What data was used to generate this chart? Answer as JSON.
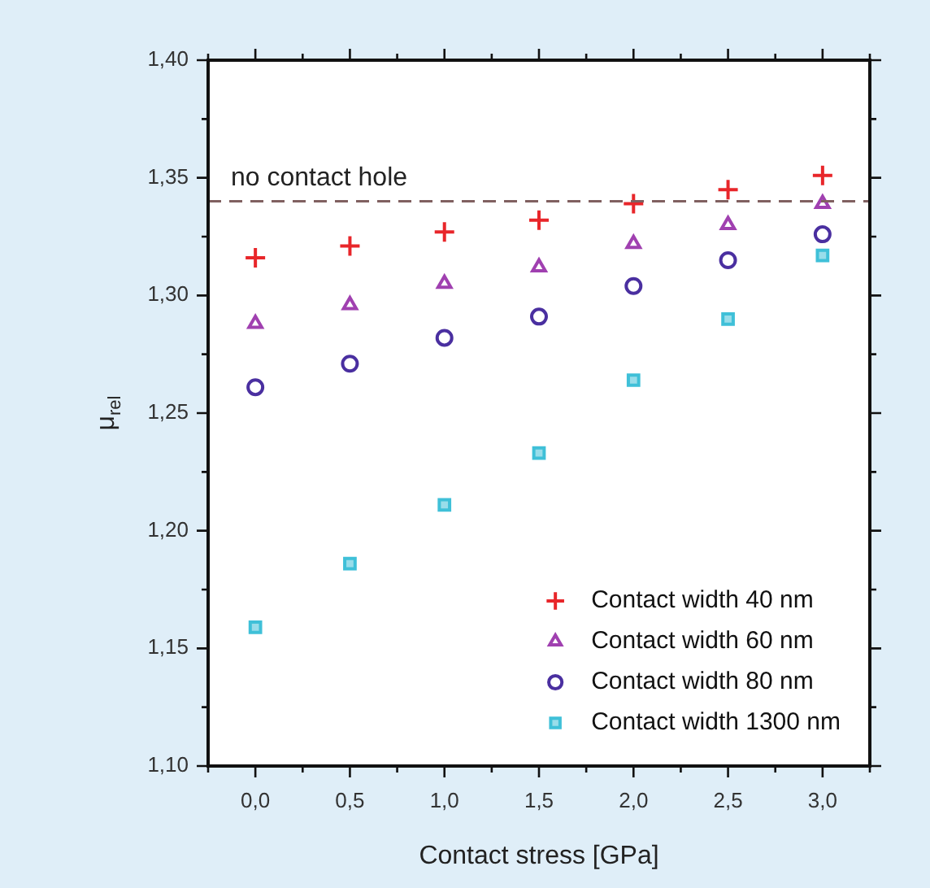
{
  "chart_data": {
    "type": "scatter",
    "xlabel": "Contact stress [GPa]",
    "ylabel": "μ$_{rel}$",
    "x": [
      0,
      0.5,
      1,
      1.5,
      2,
      2.5,
      3
    ],
    "xlim": [
      -0.25,
      3.25
    ],
    "xticks": [
      {
        "value": -0.25,
        "label": null
      },
      {
        "value": 0,
        "label": "0,0"
      },
      {
        "value": 0.25,
        "label": null
      },
      {
        "value": 0.5,
        "label": "0,5"
      },
      {
        "value": 0.75,
        "label": null
      },
      {
        "value": 1,
        "label": "1,0"
      },
      {
        "value": 1.25,
        "label": null
      },
      {
        "value": 1.5,
        "label": "1,5"
      },
      {
        "value": 1.75,
        "label": null
      },
      {
        "value": 2,
        "label": "2,0"
      },
      {
        "value": 2.25,
        "label": null
      },
      {
        "value": 2.5,
        "label": "2,5"
      },
      {
        "value": 2.75,
        "label": null
      },
      {
        "value": 3,
        "label": "3,0"
      },
      {
        "value": 3.25,
        "label": null
      }
    ],
    "ylim": [
      1.1,
      1.4
    ],
    "yticks": [
      {
        "value": 1.1,
        "label": "1,10"
      },
      {
        "value": 1.125,
        "label": null
      },
      {
        "value": 1.15,
        "label": "1,15"
      },
      {
        "value": 1.175,
        "label": null
      },
      {
        "value": 1.2,
        "label": "1,20"
      },
      {
        "value": 1.225,
        "label": null
      },
      {
        "value": 1.25,
        "label": "1,25"
      },
      {
        "value": 1.275,
        "label": null
      },
      {
        "value": 1.3,
        "label": "1,30"
      },
      {
        "value": 1.325,
        "label": null
      },
      {
        "value": 1.35,
        "label": "1,35"
      },
      {
        "value": 1.375,
        "label": null
      },
      {
        "value": 1.4,
        "label": "1,40"
      }
    ],
    "grid": false,
    "legend": "bottom right",
    "series": [
      {
        "name": "Contact width 40 nm",
        "color": "#e8262a",
        "marker": "cross",
        "values": [
          1.316,
          1.321,
          1.327,
          1.332,
          1.339,
          1.345,
          1.351
        ]
      },
      {
        "name": "Contact width 60 nm",
        "color": "#a040b0",
        "marker": "triangle",
        "values": [
          1.288,
          1.296,
          1.305,
          1.312,
          1.322,
          1.33,
          1.339
        ]
      },
      {
        "name": "Contact width 80 nm",
        "color": "#4a2fa0",
        "marker": "circle",
        "values": [
          1.261,
          1.271,
          1.282,
          1.291,
          1.304,
          1.315,
          1.326
        ]
      },
      {
        "name": "Contact width 1300 nm",
        "color": "#3fc0d8",
        "marker": "square",
        "values": [
          1.159,
          1.186,
          1.211,
          1.233,
          1.264,
          1.29,
          1.317
        ]
      }
    ],
    "ref_lines": [
      {
        "axis": "y",
        "value": 1.34,
        "label": "no contact hole",
        "color": "#806060",
        "line_style": "dashed"
      }
    ]
  }
}
